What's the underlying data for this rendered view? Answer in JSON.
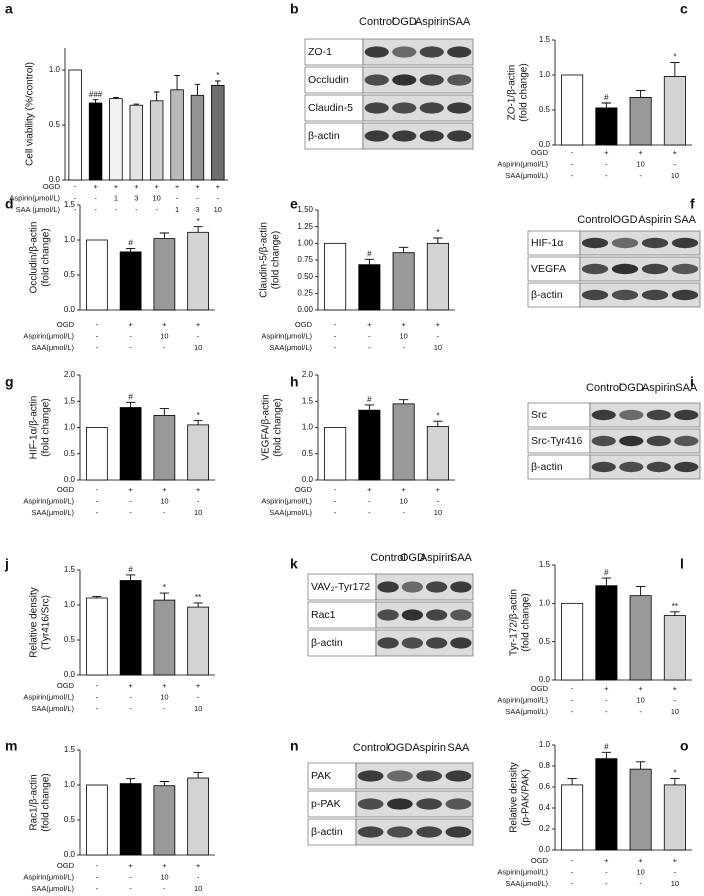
{
  "chart_data": [
    {
      "type": "bar",
      "panel": "a",
      "ylabel": [
        "Cell viability (%/control)"
      ],
      "values": [
        1.0,
        0.7,
        0.74,
        0.68,
        0.72,
        0.82,
        0.77,
        0.86
      ],
      "errors": [
        null,
        0.03,
        0.01,
        0.01,
        0.08,
        0.13,
        0.1,
        0.04
      ],
      "sig": [
        null,
        "###",
        null,
        null,
        null,
        null,
        null,
        "*"
      ],
      "colors": [
        "#ffffff",
        "#000000",
        "#f2f2f2",
        "#e3e3e3",
        "#d0d0d0",
        "#b8b8b8",
        "#939393",
        "#6f6f6f"
      ],
      "ylim": [
        0,
        1.2
      ],
      "yticks": [
        {
          "value": 0,
          "label": "0.0"
        },
        {
          "value": 0.5,
          "label": "0.5"
        },
        {
          "value": 1,
          "label": "1.0"
        }
      ],
      "treatments": {
        "labels": [
          "OGD",
          "Aspirin(μmol/L)",
          "SAA (μmol/L)"
        ],
        "cells": [
          [
            "-",
            "+",
            "+",
            "+",
            "+",
            "+",
            "+",
            "+"
          ],
          [
            "-",
            "-",
            "1",
            "3",
            "10",
            "-",
            "-",
            "-"
          ],
          [
            "-",
            "-",
            "-",
            "-",
            "-",
            "1",
            "3",
            "10"
          ]
        ]
      }
    },
    {
      "type": "bar",
      "panel": "c",
      "ylabel": [
        "ZO-1/β-actin",
        "(fold change)"
      ],
      "values": [
        1.0,
        0.53,
        0.68,
        0.98
      ],
      "errors": [
        null,
        0.07,
        0.1,
        0.2
      ],
      "sig": [
        null,
        "#",
        null,
        "*"
      ],
      "colors": [
        "#ffffff",
        "#000000",
        "#999999",
        "#d3d3d3"
      ],
      "ylim": [
        0,
        1.5
      ],
      "yticks": [
        {
          "value": 0,
          "label": "0.0"
        },
        {
          "value": 0.5,
          "label": "0.5"
        },
        {
          "value": 1,
          "label": "1.0"
        },
        {
          "value": 1.5,
          "label": "1.5"
        }
      ],
      "treatments": {
        "labels": [
          "OGD",
          "Aspirin(μmol/L)",
          "SAA(μmol/L)"
        ],
        "cells": [
          [
            "-",
            "+",
            "+",
            "+"
          ],
          [
            "-",
            "-",
            "10",
            "-"
          ],
          [
            "-",
            "-",
            "-",
            "10"
          ]
        ]
      }
    },
    {
      "type": "bar",
      "panel": "d",
      "ylabel": [
        "Occludin/β-actin",
        "(fold change)"
      ],
      "values": [
        1.0,
        0.83,
        1.02,
        1.11
      ],
      "errors": [
        null,
        0.05,
        0.08,
        0.08
      ],
      "sig": [
        null,
        "#",
        null,
        "*"
      ],
      "colors": [
        "#ffffff",
        "#000000",
        "#999999",
        "#d3d3d3"
      ],
      "ylim": [
        0,
        1.5
      ],
      "yticks": [
        {
          "value": 0,
          "label": "0.0"
        },
        {
          "value": 0.5,
          "label": "0.5"
        },
        {
          "value": 1,
          "label": "1.0"
        },
        {
          "value": 1.5,
          "label": "1.5"
        }
      ],
      "treatments": {
        "labels": [
          "OGD",
          "Aspirin(μmol/L)",
          "SAA(μmol/L)"
        ],
        "cells": [
          [
            "-",
            "+",
            "+",
            "+"
          ],
          [
            "-",
            "-",
            "10",
            "-"
          ],
          [
            "-",
            "-",
            "-",
            "10"
          ]
        ]
      }
    },
    {
      "type": "bar",
      "panel": "e",
      "ylabel": [
        "Claudin-5/β-actin",
        "(fold change)"
      ],
      "values": [
        1.0,
        0.68,
        0.86,
        1.0
      ],
      "errors": [
        null,
        0.08,
        0.08,
        0.08
      ],
      "sig": [
        null,
        "#",
        null,
        "*"
      ],
      "colors": [
        "#ffffff",
        "#000000",
        "#999999",
        "#d3d3d3"
      ],
      "ylim": [
        0,
        1.5
      ],
      "yticks": [
        {
          "value": 0,
          "label": "0.00"
        },
        {
          "value": 0.25,
          "label": "0.25"
        },
        {
          "value": 0.5,
          "label": "0.50"
        },
        {
          "value": 0.75,
          "label": "0.75"
        },
        {
          "value": 1,
          "label": "1.00"
        },
        {
          "value": 1.25,
          "label": "1.25"
        },
        {
          "value": 1.5,
          "label": "1.50"
        }
      ],
      "treatments": {
        "labels": [
          "OGD",
          "Aspirin(μmol/L)",
          "SAA(μmol/L)"
        ],
        "cells": [
          [
            "-",
            "+",
            "+",
            "+"
          ],
          [
            "-",
            "-",
            "10",
            "-"
          ],
          [
            "-",
            "-",
            "-",
            "10"
          ]
        ]
      }
    },
    {
      "type": "bar",
      "panel": "g",
      "ylabel": [
        "HIF-1α/β-actin",
        "(fold change)"
      ],
      "values": [
        1.0,
        1.38,
        1.23,
        1.05
      ],
      "errors": [
        null,
        0.1,
        0.13,
        0.08
      ],
      "sig": [
        null,
        "#",
        null,
        "*"
      ],
      "colors": [
        "#ffffff",
        "#000000",
        "#999999",
        "#d3d3d3"
      ],
      "ylim": [
        0,
        2
      ],
      "yticks": [
        {
          "value": 0,
          "label": "0.0"
        },
        {
          "value": 0.5,
          "label": "0.5"
        },
        {
          "value": 1,
          "label": "1.0"
        },
        {
          "value": 1.5,
          "label": "1.5"
        },
        {
          "value": 2,
          "label": "2.0"
        }
      ],
      "treatments": {
        "labels": [
          "OGD",
          "Aspirin(μmol/L)",
          "SAA(μmol/L)"
        ],
        "cells": [
          [
            "-",
            "+",
            "+",
            "+"
          ],
          [
            "-",
            "-",
            "10",
            "-"
          ],
          [
            "-",
            "-",
            "-",
            "10"
          ]
        ]
      }
    },
    {
      "type": "bar",
      "panel": "h",
      "ylabel": [
        "VEGFA/β-actin",
        "(fold change)"
      ],
      "values": [
        1.0,
        1.33,
        1.45,
        1.02
      ],
      "errors": [
        null,
        0.1,
        0.08,
        0.1
      ],
      "sig": [
        null,
        "#",
        null,
        "*"
      ],
      "colors": [
        "#ffffff",
        "#000000",
        "#999999",
        "#d3d3d3"
      ],
      "ylim": [
        0,
        2
      ],
      "yticks": [
        {
          "value": 0,
          "label": "0.0"
        },
        {
          "value": 0.5,
          "label": "0.5"
        },
        {
          "value": 1,
          "label": "1.0"
        },
        {
          "value": 1.5,
          "label": "1.5"
        },
        {
          "value": 2,
          "label": "2.0"
        }
      ],
      "treatments": {
        "labels": [
          "OGD",
          "Aspirin(μmol/L)",
          "SAA(μmol/L)"
        ],
        "cells": [
          [
            "-",
            "+",
            "+",
            "+"
          ],
          [
            "-",
            "-",
            "10",
            "-"
          ],
          [
            "-",
            "-",
            "-",
            "10"
          ]
        ]
      }
    },
    {
      "type": "bar",
      "panel": "j",
      "ylabel": [
        "Relative density",
        "(Tyr416/Src)"
      ],
      "values": [
        1.1,
        1.35,
        1.07,
        0.97
      ],
      "errors": [
        0.02,
        0.08,
        0.1,
        0.06
      ],
      "sig": [
        null,
        "#",
        "*",
        "**"
      ],
      "colors": [
        "#ffffff",
        "#000000",
        "#999999",
        "#d3d3d3"
      ],
      "ylim": [
        0,
        1.5
      ],
      "yticks": [
        {
          "value": 0,
          "label": "0.0"
        },
        {
          "value": 0.5,
          "label": "0.5"
        },
        {
          "value": 1,
          "label": "1.0"
        },
        {
          "value": 1.5,
          "label": "1.5"
        }
      ],
      "treatments": {
        "labels": [
          "OGD",
          "Aspirin(μmol/L)",
          "SAA(μmol/L)"
        ],
        "cells": [
          [
            "-",
            "+",
            "+",
            "+"
          ],
          [
            "-",
            "-",
            "10",
            "-"
          ],
          [
            "-",
            "-",
            "-",
            "10"
          ]
        ]
      }
    },
    {
      "type": "bar",
      "panel": "l",
      "ylabel": [
        "Tyr-172/β-actin",
        "(fold  change)"
      ],
      "values": [
        1.0,
        1.23,
        1.1,
        0.84
      ],
      "errors": [
        null,
        0.1,
        0.12,
        0.05
      ],
      "sig": [
        null,
        "#",
        null,
        "**"
      ],
      "colors": [
        "#ffffff",
        "#000000",
        "#999999",
        "#d3d3d3"
      ],
      "ylim": [
        0,
        1.5
      ],
      "yticks": [
        {
          "value": 0,
          "label": "0.0"
        },
        {
          "value": 0.5,
          "label": "0.5"
        },
        {
          "value": 1,
          "label": "1.0"
        },
        {
          "value": 1.5,
          "label": "1.5"
        }
      ],
      "treatments": {
        "labels": [
          "OGD",
          "Aspirin(μmol/L)",
          "SAA(μmol/L)"
        ],
        "cells": [
          [
            "-",
            "+",
            "+",
            "+"
          ],
          [
            "-",
            "-",
            "10",
            "-"
          ],
          [
            "-",
            "-",
            "-",
            "10"
          ]
        ]
      }
    },
    {
      "type": "bar",
      "panel": "m",
      "ylabel": [
        "Rac1/β-actin",
        "(fold change)"
      ],
      "values": [
        1.0,
        1.02,
        0.99,
        1.1
      ],
      "errors": [
        null,
        0.07,
        0.06,
        0.08
      ],
      "sig": [
        null,
        null,
        null,
        null
      ],
      "colors": [
        "#ffffff",
        "#000000",
        "#999999",
        "#d3d3d3"
      ],
      "ylim": [
        0,
        1.5
      ],
      "yticks": [
        {
          "value": 0,
          "label": "0.0"
        },
        {
          "value": 0.5,
          "label": "0.5"
        },
        {
          "value": 1,
          "label": "1.0"
        },
        {
          "value": 1.5,
          "label": "1.5"
        }
      ],
      "treatments": {
        "labels": [
          "OGD",
          "Aspirin(μmol/L)",
          "SAA(μmol/L)"
        ],
        "cells": [
          [
            "-",
            "+",
            "+",
            "+"
          ],
          [
            "-",
            "-",
            "10",
            "-"
          ],
          [
            "-",
            "-",
            "-",
            "10"
          ]
        ]
      }
    },
    {
      "type": "bar",
      "panel": "o",
      "ylabel": [
        "Relative density",
        "(p-PAK/PAK)"
      ],
      "values": [
        0.62,
        0.87,
        0.77,
        0.62
      ],
      "errors": [
        0.06,
        0.06,
        0.07,
        0.06
      ],
      "sig": [
        null,
        "#",
        null,
        "*"
      ],
      "colors": [
        "#ffffff",
        "#000000",
        "#999999",
        "#d3d3d3"
      ],
      "ylim": [
        0,
        1
      ],
      "yticks": [
        {
          "value": 0,
          "label": "0.0"
        },
        {
          "value": 0.2,
          "label": "0.2"
        },
        {
          "value": 0.4,
          "label": "0.4"
        },
        {
          "value": 0.6,
          "label": "0.6"
        },
        {
          "value": 0.8,
          "label": "0.8"
        },
        {
          "value": 1,
          "label": "1.0"
        }
      ],
      "treatments": {
        "labels": [
          "OGD",
          "Aspirin(μmol/L)",
          "SAA(μmol/L)"
        ],
        "cells": [
          [
            "-",
            "+",
            "+",
            "+"
          ],
          [
            "-",
            "-",
            "10",
            "-"
          ],
          [
            "-",
            "-",
            "-",
            "10"
          ]
        ]
      }
    }
  ],
  "blots": [
    {
      "panel": "b",
      "columns": [
        "Control",
        "OGD",
        "Aspirin",
        "SAA"
      ],
      "rows": [
        "ZO-1",
        "Occludin",
        "Claudin-5",
        "β-actin"
      ]
    },
    {
      "panel": "f",
      "columns": [
        "Control",
        "OGD",
        "Aspirin",
        "SAA"
      ],
      "rows": [
        "HIF-1α",
        "VEGFA",
        "β-actin"
      ]
    },
    {
      "panel": "i",
      "columns": [
        "Control",
        "OGD",
        "Aspirin",
        "SAA"
      ],
      "rows": [
        "Src",
        "Src-Tyr416",
        "β-actin"
      ]
    },
    {
      "panel": "k",
      "columns": [
        "Control",
        "OGD",
        "Aspirin",
        "SAA"
      ],
      "rows": [
        "VAV₂-Tyr172",
        "Rac1",
        "β-actin"
      ]
    },
    {
      "panel": "n",
      "columns": [
        "Control",
        "OGD",
        "Aspirin",
        "SAA"
      ],
      "rows": [
        "PAK",
        "p-PAK",
        "β-actin"
      ]
    }
  ]
}
